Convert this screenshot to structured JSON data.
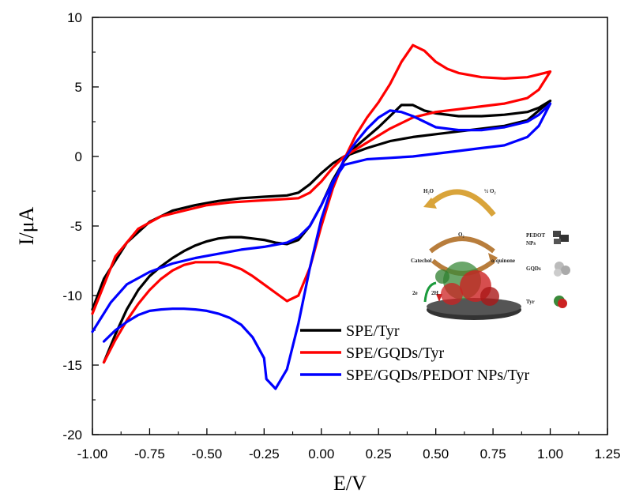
{
  "chart_data": {
    "type": "line",
    "title": "",
    "xlabel": "E/V",
    "ylabel": "I/μA",
    "xlim": [
      -1.0,
      1.25
    ],
    "ylim": [
      -20,
      10
    ],
    "x_ticks": [
      "-1.00",
      "-0.75",
      "-0.50",
      "-0.25",
      "0.00",
      "0.25",
      "0.50",
      "0.75",
      "1.00",
      "1.25"
    ],
    "y_ticks": [
      "10",
      "5",
      "0",
      "-5",
      "-10",
      "-15",
      "-20"
    ],
    "x_tick_values": [
      -1.0,
      -0.75,
      -0.5,
      -0.25,
      0.0,
      0.25,
      0.5,
      0.75,
      1.0,
      1.25
    ],
    "y_tick_values": [
      10,
      5,
      0,
      -5,
      -10,
      -15,
      -20
    ],
    "legend_position": "lower-right",
    "series": [
      {
        "name": "SPE/Tyr",
        "color": "#000000",
        "points": [
          [
            -0.95,
            -14.8
          ],
          [
            -0.9,
            -12.8
          ],
          [
            -0.85,
            -11.0
          ],
          [
            -0.8,
            -9.6
          ],
          [
            -0.75,
            -8.6
          ],
          [
            -0.7,
            -7.9
          ],
          [
            -0.65,
            -7.3
          ],
          [
            -0.6,
            -6.8
          ],
          [
            -0.55,
            -6.4
          ],
          [
            -0.5,
            -6.1
          ],
          [
            -0.45,
            -5.9
          ],
          [
            -0.4,
            -5.8
          ],
          [
            -0.35,
            -5.8
          ],
          [
            -0.3,
            -5.9
          ],
          [
            -0.25,
            -6.0
          ],
          [
            -0.2,
            -6.2
          ],
          [
            -0.15,
            -6.3
          ],
          [
            -0.1,
            -6.0
          ],
          [
            -0.05,
            -5.0
          ],
          [
            0.0,
            -3.5
          ],
          [
            0.05,
            -1.7
          ],
          [
            0.1,
            -0.3
          ],
          [
            0.15,
            0.7
          ],
          [
            0.2,
            1.4
          ],
          [
            0.25,
            2.1
          ],
          [
            0.3,
            2.9
          ],
          [
            0.35,
            3.7
          ],
          [
            0.4,
            3.7
          ],
          [
            0.45,
            3.3
          ],
          [
            0.5,
            3.1
          ],
          [
            0.6,
            2.9
          ],
          [
            0.7,
            2.9
          ],
          [
            0.8,
            3.0
          ],
          [
            0.9,
            3.2
          ],
          [
            0.95,
            3.5
          ],
          [
            1.0,
            4.0
          ],
          [
            0.95,
            3.3
          ],
          [
            0.9,
            2.6
          ],
          [
            0.8,
            2.2
          ],
          [
            0.7,
            2.0
          ],
          [
            0.6,
            1.8
          ],
          [
            0.5,
            1.6
          ],
          [
            0.4,
            1.4
          ],
          [
            0.3,
            1.1
          ],
          [
            0.2,
            0.6
          ],
          [
            0.1,
            0.0
          ],
          [
            0.05,
            -0.5
          ],
          [
            0.0,
            -1.2
          ],
          [
            -0.05,
            -2.0
          ],
          [
            -0.1,
            -2.6
          ],
          [
            -0.15,
            -2.8
          ],
          [
            -0.25,
            -2.9
          ],
          [
            -0.35,
            -3.0
          ],
          [
            -0.45,
            -3.2
          ],
          [
            -0.55,
            -3.5
          ],
          [
            -0.65,
            -3.9
          ],
          [
            -0.75,
            -4.7
          ],
          [
            -0.85,
            -6.2
          ],
          [
            -0.95,
            -8.8
          ],
          [
            -1.0,
            -11.0
          ]
        ]
      },
      {
        "name": "SPE/GQDs/Tyr",
        "color": "#ff0000",
        "points": [
          [
            -0.95,
            -14.8
          ],
          [
            -0.9,
            -13.2
          ],
          [
            -0.85,
            -11.8
          ],
          [
            -0.8,
            -10.6
          ],
          [
            -0.75,
            -9.6
          ],
          [
            -0.7,
            -8.8
          ],
          [
            -0.65,
            -8.2
          ],
          [
            -0.6,
            -7.8
          ],
          [
            -0.55,
            -7.6
          ],
          [
            -0.5,
            -7.6
          ],
          [
            -0.45,
            -7.6
          ],
          [
            -0.4,
            -7.8
          ],
          [
            -0.35,
            -8.1
          ],
          [
            -0.3,
            -8.6
          ],
          [
            -0.25,
            -9.2
          ],
          [
            -0.2,
            -9.8
          ],
          [
            -0.15,
            -10.4
          ],
          [
            -0.1,
            -10.0
          ],
          [
            -0.05,
            -8.0
          ],
          [
            0.0,
            -5.0
          ],
          [
            0.05,
            -2.3
          ],
          [
            0.1,
            -0.2
          ],
          [
            0.15,
            1.5
          ],
          [
            0.2,
            2.8
          ],
          [
            0.25,
            3.9
          ],
          [
            0.3,
            5.2
          ],
          [
            0.35,
            6.8
          ],
          [
            0.4,
            8.0
          ],
          [
            0.45,
            7.6
          ],
          [
            0.5,
            6.8
          ],
          [
            0.55,
            6.3
          ],
          [
            0.6,
            6.0
          ],
          [
            0.7,
            5.7
          ],
          [
            0.8,
            5.6
          ],
          [
            0.9,
            5.7
          ],
          [
            0.95,
            5.9
          ],
          [
            1.0,
            6.1
          ],
          [
            0.95,
            4.8
          ],
          [
            0.9,
            4.2
          ],
          [
            0.8,
            3.8
          ],
          [
            0.7,
            3.6
          ],
          [
            0.6,
            3.4
          ],
          [
            0.5,
            3.2
          ],
          [
            0.4,
            2.8
          ],
          [
            0.3,
            2.0
          ],
          [
            0.2,
            1.0
          ],
          [
            0.1,
            0.0
          ],
          [
            0.05,
            -0.8
          ],
          [
            0.0,
            -1.8
          ],
          [
            -0.05,
            -2.6
          ],
          [
            -0.1,
            -3.0
          ],
          [
            -0.2,
            -3.1
          ],
          [
            -0.3,
            -3.2
          ],
          [
            -0.4,
            -3.3
          ],
          [
            -0.5,
            -3.5
          ],
          [
            -0.6,
            -3.9
          ],
          [
            -0.7,
            -4.3
          ],
          [
            -0.8,
            -5.2
          ],
          [
            -0.9,
            -7.2
          ],
          [
            -1.0,
            -11.3
          ]
        ]
      },
      {
        "name": "SPE/GQDs/PEDOT NPs/Tyr",
        "color": "#0000ff",
        "points": [
          [
            -0.95,
            -13.3
          ],
          [
            -0.9,
            -12.5
          ],
          [
            -0.85,
            -11.9
          ],
          [
            -0.8,
            -11.4
          ],
          [
            -0.75,
            -11.1
          ],
          [
            -0.7,
            -11.0
          ],
          [
            -0.65,
            -10.95
          ],
          [
            -0.6,
            -10.95
          ],
          [
            -0.55,
            -11.0
          ],
          [
            -0.5,
            -11.1
          ],
          [
            -0.45,
            -11.3
          ],
          [
            -0.4,
            -11.6
          ],
          [
            -0.35,
            -12.1
          ],
          [
            -0.3,
            -13.0
          ],
          [
            -0.25,
            -14.5
          ],
          [
            -0.24,
            -16.0
          ],
          [
            -0.2,
            -16.7
          ],
          [
            -0.15,
            -15.3
          ],
          [
            -0.1,
            -12.0
          ],
          [
            -0.05,
            -8.0
          ],
          [
            0.0,
            -4.5
          ],
          [
            0.05,
            -2.0
          ],
          [
            0.1,
            -0.2
          ],
          [
            0.15,
            1.0
          ],
          [
            0.2,
            2.0
          ],
          [
            0.25,
            2.8
          ],
          [
            0.3,
            3.3
          ],
          [
            0.35,
            3.2
          ],
          [
            0.4,
            2.9
          ],
          [
            0.45,
            2.5
          ],
          [
            0.5,
            2.1
          ],
          [
            0.6,
            1.9
          ],
          [
            0.7,
            1.9
          ],
          [
            0.8,
            2.1
          ],
          [
            0.9,
            2.5
          ],
          [
            0.95,
            3.0
          ],
          [
            1.0,
            3.8
          ],
          [
            0.95,
            2.2
          ],
          [
            0.9,
            1.4
          ],
          [
            0.8,
            0.8
          ],
          [
            0.7,
            0.6
          ],
          [
            0.6,
            0.4
          ],
          [
            0.5,
            0.2
          ],
          [
            0.4,
            0.0
          ],
          [
            0.3,
            -0.1
          ],
          [
            0.2,
            -0.2
          ],
          [
            0.1,
            -0.6
          ],
          [
            0.05,
            -1.8
          ],
          [
            0.0,
            -3.5
          ],
          [
            -0.05,
            -5.0
          ],
          [
            -0.1,
            -5.8
          ],
          [
            -0.15,
            -6.2
          ],
          [
            -0.25,
            -6.5
          ],
          [
            -0.35,
            -6.7
          ],
          [
            -0.45,
            -7.0
          ],
          [
            -0.55,
            -7.3
          ],
          [
            -0.65,
            -7.7
          ],
          [
            -0.75,
            -8.3
          ],
          [
            -0.85,
            -9.2
          ],
          [
            -0.92,
            -10.5
          ],
          [
            -1.0,
            -12.6
          ]
        ]
      }
    ]
  },
  "inset": {
    "labels": {
      "h2o": "H₂O",
      "half_o2": "½ O₂",
      "o2": "O₂",
      "catechol": "Catechol",
      "quinone": "o-quinone",
      "two_e": "2e",
      "two_h": "2H",
      "pedot": "PEDOT",
      "nps": "NPs",
      "gqds": "GQDs",
      "tyr": "Tyr"
    }
  }
}
